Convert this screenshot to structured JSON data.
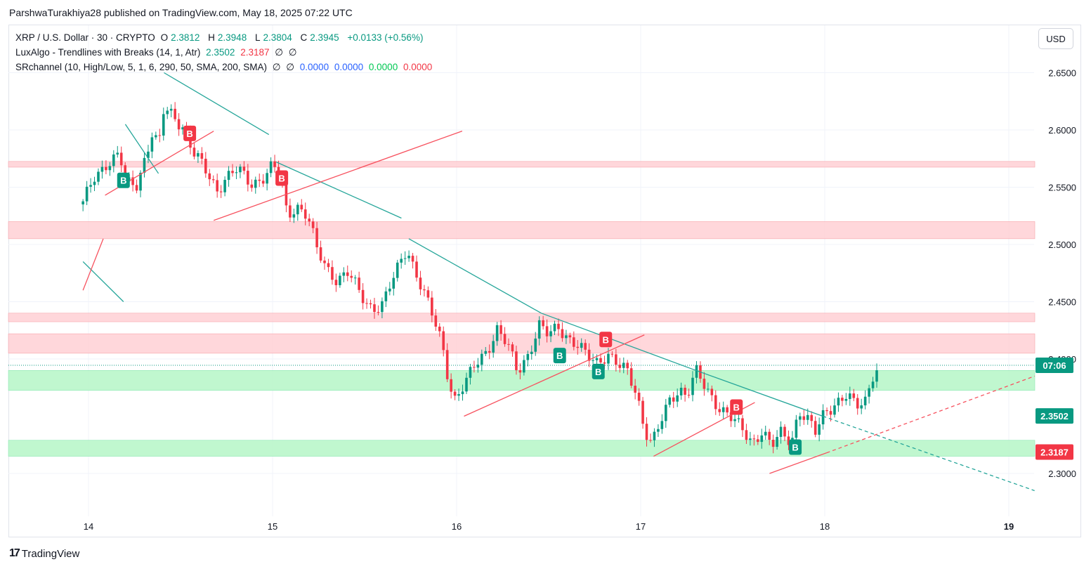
{
  "credit": "ParshwaTurakhiya28 published on TradingView.com, May 18, 2025 07:22 UTC",
  "legend": {
    "symbol": "XRP / U.S. Dollar · 30 · CRYPTO",
    "o_label": "O",
    "o_value": "2.3812",
    "h_label": "H",
    "h_value": "2.3948",
    "l_label": "L",
    "l_value": "2.3804",
    "c_label": "C",
    "c_value": "2.3945",
    "change": "+0.0133 (+0.56%)",
    "ind1_name": "LuxAlgo - Trendlines with Breaks (14, 1, Atr)",
    "ind1_v1": "2.3502",
    "ind1_v2": "2.3187",
    "ind1_v3": "∅",
    "ind1_v4": "∅",
    "ind2_name": "SRchannel (10, High/Low, 5, 1, 6, 290, 50, SMA, 200, SMA)",
    "ind2_v1": "∅",
    "ind2_v2": "∅",
    "ind2_v3": "0.0000",
    "ind2_v4": "0.0000",
    "ind2_v5": "0.0000",
    "ind2_v6": "0.0000"
  },
  "currency_button": "USD",
  "footer": {
    "logo": "17",
    "brand": "TradingView"
  },
  "colors": {
    "up": "#089981",
    "down": "#f23645",
    "resistance_zone": "#ffcdd2",
    "support_zone": "#b9f6ca",
    "trend_down": "#26a69a",
    "trend_up": "#f7525f"
  },
  "chart_data": {
    "type": "candlestick",
    "y_ticks": [
      "2.6500",
      "2.6000",
      "2.5500",
      "2.5000",
      "2.4500",
      "2.4000",
      "2.3000"
    ],
    "x_ticks": [
      "14",
      "15",
      "16",
      "17",
      "18",
      "19"
    ],
    "price_labels": [
      {
        "text": "07:06",
        "price": 2.3945,
        "color": "#089981"
      },
      {
        "text": "2.3502",
        "price": 2.3502,
        "color": "#089981"
      },
      {
        "text": "2.3187",
        "price": 2.3187,
        "color": "#f23645"
      }
    ],
    "resistance_zones": [
      [
        2.5675,
        2.5725
      ],
      [
        2.505,
        2.52
      ],
      [
        2.4325,
        2.44
      ],
      [
        2.405,
        2.422
      ]
    ],
    "support_zones": [
      [
        2.3725,
        2.39
      ],
      [
        2.315,
        2.329
      ]
    ],
    "markers": [
      {
        "text": "B",
        "day": 14.55,
        "price": 2.597,
        "color": "#f23645"
      },
      {
        "text": "B",
        "day": 14.19,
        "price": 2.556,
        "color": "#089981"
      },
      {
        "text": "B",
        "day": 15.05,
        "price": 2.558,
        "color": "#f23645"
      },
      {
        "text": "B",
        "day": 16.56,
        "price": 2.403,
        "color": "#089981"
      },
      {
        "text": "B",
        "day": 16.81,
        "price": 2.417,
        "color": "#f23645"
      },
      {
        "text": "B",
        "day": 16.77,
        "price": 2.389,
        "color": "#089981"
      },
      {
        "text": "B",
        "day": 17.52,
        "price": 2.358,
        "color": "#f23645"
      },
      {
        "text": "B",
        "day": 17.84,
        "price": 2.323,
        "color": "#089981"
      }
    ],
    "trendlines": [
      {
        "from": [
          13.97,
          2.485
        ],
        "to": [
          14.19,
          2.45
        ],
        "color": "#26a69a",
        "dashed": false
      },
      {
        "from": [
          14.2,
          2.605
        ],
        "to": [
          14.38,
          2.562
        ],
        "color": "#26a69a",
        "dashed": false
      },
      {
        "from": [
          14.41,
          2.65
        ],
        "to": [
          14.98,
          2.596
        ],
        "color": "#26a69a",
        "dashed": false
      },
      {
        "from": [
          15.02,
          2.572
        ],
        "to": [
          15.7,
          2.523
        ],
        "color": "#26a69a",
        "dashed": false
      },
      {
        "from": [
          15.74,
          2.505
        ],
        "to": [
          16.46,
          2.44
        ],
        "color": "#26a69a",
        "dashed": false
      },
      {
        "from": [
          16.46,
          2.44
        ],
        "to": [
          17.3,
          2.39
        ],
        "color": "#26a69a",
        "dashed": false
      },
      {
        "from": [
          17.3,
          2.39
        ],
        "to": [
          17.99,
          2.35
        ],
        "color": "#26a69a",
        "dashed": false
      },
      {
        "from": [
          17.99,
          2.35
        ],
        "to": [
          19.14,
          2.285
        ],
        "color": "#26a69a",
        "dashed": true
      },
      {
        "from": [
          13.97,
          2.46
        ],
        "to": [
          14.08,
          2.505
        ],
        "color": "#f7525f",
        "dashed": false
      },
      {
        "from": [
          14.09,
          2.543
        ],
        "to": [
          14.68,
          2.599
        ],
        "color": "#f7525f",
        "dashed": false
      },
      {
        "from": [
          14.68,
          2.521
        ],
        "to": [
          16.03,
          2.599
        ],
        "color": "#f7525f",
        "dashed": false
      },
      {
        "from": [
          16.04,
          2.35
        ],
        "to": [
          17.02,
          2.421
        ],
        "color": "#f7525f",
        "dashed": false
      },
      {
        "from": [
          17.07,
          2.315
        ],
        "to": [
          17.62,
          2.362
        ],
        "color": "#f7525f",
        "dashed": false
      },
      {
        "from": [
          17.7,
          2.3
        ],
        "to": [
          18.01,
          2.318
        ],
        "color": "#f7525f",
        "dashed": false
      },
      {
        "from": [
          18.01,
          2.318
        ],
        "to": [
          19.14,
          2.385
        ],
        "color": "#f7525f",
        "dashed": true
      }
    ],
    "close_path": [
      [
        13.97,
        2.535
      ],
      [
        14.03,
        2.558
      ],
      [
        14.1,
        2.572
      ],
      [
        14.17,
        2.578
      ],
      [
        14.2,
        2.552
      ],
      [
        14.26,
        2.552
      ],
      [
        14.31,
        2.578
      ],
      [
        14.35,
        2.6
      ],
      [
        14.38,
        2.582
      ],
      [
        14.41,
        2.618
      ],
      [
        14.44,
        2.615
      ],
      [
        14.51,
        2.605
      ],
      [
        14.57,
        2.58
      ],
      [
        14.62,
        2.568
      ],
      [
        14.7,
        2.548
      ],
      [
        14.74,
        2.558
      ],
      [
        14.81,
        2.565
      ],
      [
        14.88,
        2.553
      ],
      [
        14.94,
        2.558
      ],
      [
        15.0,
        2.568
      ],
      [
        15.04,
        2.56
      ],
      [
        15.08,
        2.525
      ],
      [
        15.13,
        2.535
      ],
      [
        15.19,
        2.525
      ],
      [
        15.24,
        2.495
      ],
      [
        15.29,
        2.48
      ],
      [
        15.35,
        2.47
      ],
      [
        15.41,
        2.475
      ],
      [
        15.48,
        2.455
      ],
      [
        15.54,
        2.445
      ],
      [
        15.6,
        2.448
      ],
      [
        15.67,
        2.475
      ],
      [
        15.73,
        2.498
      ],
      [
        15.78,
        2.475
      ],
      [
        15.85,
        2.445
      ],
      [
        15.92,
        2.415
      ],
      [
        15.96,
        2.38
      ],
      [
        15.99,
        2.365
      ],
      [
        16.05,
        2.378
      ],
      [
        16.1,
        2.395
      ],
      [
        16.17,
        2.41
      ],
      [
        16.22,
        2.425
      ],
      [
        16.28,
        2.41
      ],
      [
        16.33,
        2.39
      ],
      [
        16.39,
        2.405
      ],
      [
        16.45,
        2.428
      ],
      [
        16.5,
        2.42
      ],
      [
        16.55,
        2.43
      ],
      [
        16.61,
        2.418
      ],
      [
        16.66,
        2.41
      ],
      [
        16.71,
        2.402
      ],
      [
        16.76,
        2.398
      ],
      [
        16.82,
        2.405
      ],
      [
        16.88,
        2.393
      ],
      [
        16.93,
        2.388
      ],
      [
        16.98,
        2.37
      ],
      [
        17.02,
        2.34
      ],
      [
        17.06,
        2.325
      ],
      [
        17.1,
        2.34
      ],
      [
        17.16,
        2.365
      ],
      [
        17.21,
        2.375
      ],
      [
        17.25,
        2.368
      ],
      [
        17.3,
        2.388
      ],
      [
        17.35,
        2.375
      ],
      [
        17.42,
        2.36
      ],
      [
        17.48,
        2.35
      ],
      [
        17.55,
        2.338
      ],
      [
        17.61,
        2.328
      ],
      [
        17.66,
        2.338
      ],
      [
        17.71,
        2.322
      ],
      [
        17.76,
        2.335
      ],
      [
        17.82,
        2.33
      ],
      [
        17.86,
        2.355
      ],
      [
        17.91,
        2.345
      ],
      [
        17.95,
        2.335
      ],
      [
        18.0,
        2.355
      ],
      [
        18.06,
        2.362
      ],
      [
        18.12,
        2.367
      ],
      [
        18.17,
        2.358
      ],
      [
        18.22,
        2.365
      ],
      [
        18.26,
        2.387
      ],
      [
        18.3,
        2.3945
      ]
    ]
  }
}
